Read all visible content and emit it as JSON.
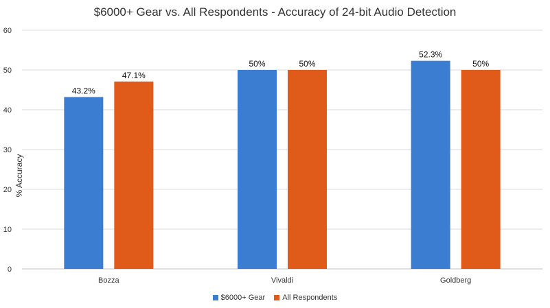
{
  "chart_data": {
    "type": "bar",
    "title": "$6000+ Gear vs. All Respondents - Accuracy of 24-bit Audio Detection",
    "xlabel": "",
    "ylabel": "% Accuracy",
    "ylim": [
      0,
      60
    ],
    "yticks": [
      0,
      10,
      20,
      30,
      40,
      50,
      60
    ],
    "grid": true,
    "legend_position": "bottom",
    "categories": [
      "Bozza",
      "Vivaldi",
      "Goldberg"
    ],
    "series": [
      {
        "name": "$6000+ Gear",
        "color": "#3a7dd1",
        "values": [
          43.2,
          50,
          52.3
        ],
        "labels": [
          "43.2%",
          "50%",
          "52.3%"
        ]
      },
      {
        "name": "All Respondents",
        "color": "#e05a1a",
        "values": [
          47.1,
          50,
          50
        ],
        "labels": [
          "47.1%",
          "50%",
          "50%"
        ]
      }
    ]
  }
}
